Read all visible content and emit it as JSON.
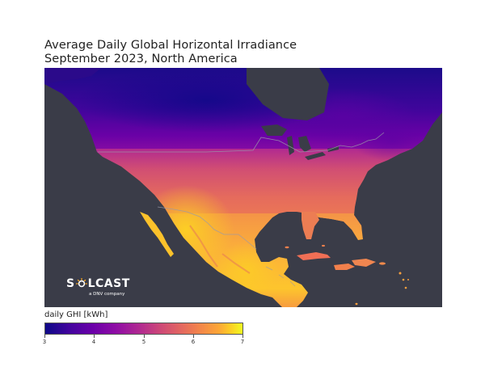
{
  "title": {
    "line1": "Average Daily Global Horizontal Irradiance",
    "line2": "September 2023, North America"
  },
  "logo": {
    "left_text": "S",
    "right_text": "LCAST",
    "tagline": "a DNV company"
  },
  "colorbar": {
    "label": "daily GHI [kWh]",
    "min": 3,
    "max": 7,
    "ticks": [
      "3",
      "4",
      "5",
      "6",
      "7"
    ],
    "colormap": "plasma"
  },
  "colors": {
    "ocean": "#3a3c48",
    "land_low": "#0d0887",
    "land_high": "#f0f921",
    "border_lines": "#9a9aa8"
  }
}
